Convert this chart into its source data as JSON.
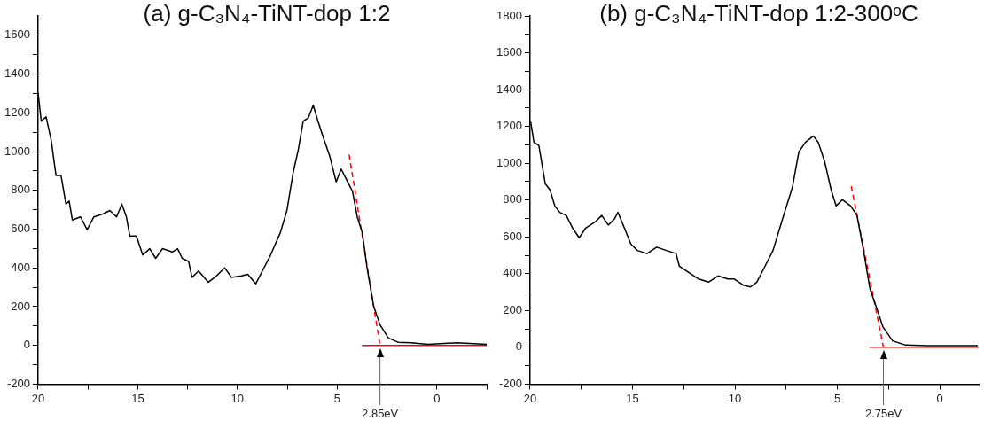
{
  "chart_data": [
    {
      "type": "line",
      "title": "(a) g-C₃N₄-TiNT-dop 1:2",
      "xlim": [
        20,
        -2.5
      ],
      "ylim": [
        -200,
        1700
      ],
      "xticks": [
        20,
        {
          "value": 17.5,
          "label": null
        },
        15,
        {
          "value": 12.5,
          "label": null
        },
        10,
        {
          "value": 7.5,
          "label": null
        },
        5,
        {
          "value": 2.5,
          "label": null
        },
        0,
        {
          "value": -2.5,
          "label": null
        }
      ],
      "yticks": [
        -200,
        {
          "value": -100,
          "label": null
        },
        0,
        {
          "value": 100,
          "label": null
        },
        200,
        {
          "value": 300,
          "label": null
        },
        400,
        {
          "value": 500,
          "label": null
        },
        600,
        {
          "value": 700,
          "label": null
        },
        800,
        {
          "value": 900,
          "label": null
        },
        1000,
        {
          "value": 1100,
          "label": null
        },
        1200,
        {
          "value": 1300,
          "label": null
        },
        1400,
        {
          "value": 1500,
          "label": null
        },
        1600
      ],
      "marker": "none",
      "ref_lines": [
        {
          "axis": "x",
          "value": 2.85,
          "label": "2.85eV",
          "color": "#666666"
        }
      ],
      "series": [
        {
          "type": "line",
          "color": "#000000",
          "line_style": "solid",
          "x": [
            20,
            19.84,
            19.6,
            19.34,
            19.1,
            18.85,
            18.6,
            18.44,
            18.28,
            17.87,
            17.54,
            17.2,
            16.7,
            16.4,
            16.06,
            15.8,
            15.57,
            15.4,
            15.07,
            14.75,
            14.4,
            14.1,
            13.76,
            13.27,
            13,
            12.77,
            12.45,
            12.28,
            11.95,
            11.46,
            11.13,
            10.64,
            10.3,
            9.8,
            9.48,
            9.08,
            8.75,
            8.34,
            7.85,
            7.52,
            7.2,
            6.95,
            6.7,
            6.45,
            6.2,
            5.96,
            5.7,
            5.37,
            5.05,
            4.8,
            4.56,
            4.23,
            3.99,
            3.74,
            3.5,
            3.17,
            2.84,
            2.43,
            1.94,
            1.28,
            0.46,
            -1,
            -2.5
          ],
          "values": [
            1305,
            1157,
            1180,
            1058,
            877,
            877,
            729,
            745,
            647,
            663,
            597,
            663,
            680,
            696,
            663,
            729,
            663,
            565,
            565,
            466,
            499,
            449,
            499,
            482,
            499,
            449,
            433,
            351,
            384,
            326,
            351,
            400,
            351,
            359,
            367,
            318,
            384,
            466,
            581,
            696,
            894,
            1009,
            1157,
            1173,
            1239,
            1157,
            1075,
            976,
            844,
            910,
            861,
            795,
            663,
            581,
            400,
            202,
            104,
            38,
            16,
            13,
            5,
            13,
            5
          ]
        },
        {
          "type": "line",
          "color": "#ff0000",
          "line_style": "dashed",
          "x": [
            4.4,
            2.85
          ],
          "values": [
            985,
            0
          ]
        },
        {
          "type": "line",
          "color": "#ff0000",
          "line_style": "solid",
          "x": [
            3.75,
            -2.5
          ],
          "values": [
            0,
            0
          ]
        }
      ]
    },
    {
      "type": "line",
      "title": "(b) g-C₃N₄-TiNT-dop 1:2-300ᵒC",
      "xlim": [
        20,
        -1.9
      ],
      "ylim": [
        -200,
        1800
      ],
      "xticks": [
        20,
        {
          "value": 17.5,
          "label": null
        },
        15,
        {
          "value": 12.5,
          "label": null
        },
        10,
        {
          "value": 7.5,
          "label": null
        },
        5,
        {
          "value": 2.5,
          "label": null
        },
        0
      ],
      "yticks": [
        -200,
        {
          "value": -100,
          "label": null
        },
        0,
        {
          "value": 100,
          "label": null
        },
        200,
        {
          "value": 300,
          "label": null
        },
        400,
        {
          "value": 500,
          "label": null
        },
        600,
        {
          "value": 700,
          "label": null
        },
        800,
        {
          "value": 900,
          "label": null
        },
        1000,
        {
          "value": 1100,
          "label": null
        },
        1200,
        {
          "value": 1300,
          "label": null
        },
        1400,
        {
          "value": 1500,
          "label": null
        },
        1600,
        {
          "value": 1700,
          "label": null
        },
        1800
      ],
      "marker": "none",
      "ref_lines": [
        {
          "axis": "x",
          "value": 2.75,
          "label": "2.75eV",
          "color": "#666666"
        }
      ],
      "series": [
        {
          "type": "line",
          "color": "#000000",
          "line_style": "solid",
          "x": [
            19.97,
            19.81,
            19.57,
            19.26,
            19.02,
            18.79,
            18.55,
            18.23,
            17.92,
            17.6,
            17.29,
            16.81,
            16.5,
            16.18,
            15.87,
            15.71,
            15.39,
            15.08,
            14.76,
            14.29,
            13.82,
            13.34,
            12.87,
            12.71,
            12.24,
            11.77,
            11.29,
            10.82,
            10.35,
            10.03,
            9.56,
            9.24,
            8.93,
            8.61,
            8.14,
            7.67,
            7.19,
            6.88,
            6.56,
            6.17,
            5.93,
            5.62,
            5.3,
            5.06,
            4.75,
            4.35,
            4.04,
            3.72,
            3.41,
            3.09,
            2.78,
            2.3,
            1.67,
            0.57,
            -0.69,
            -1.86
          ],
          "values": [
            1225,
            1113,
            1096,
            889,
            854,
            768,
            733,
            716,
            647,
            595,
            647,
            682,
            716,
            664,
            699,
            733,
            647,
            561,
            526,
            509,
            544,
            526,
            509,
            440,
            406,
            371,
            354,
            388,
            371,
            371,
            336,
            328,
            354,
            423,
            526,
            699,
            871,
            1061,
            1113,
            1148,
            1113,
            1009,
            854,
            768,
            802,
            768,
            716,
            526,
            319,
            216,
            112,
            35,
            12,
            9,
            9,
            9
          ]
        },
        {
          "type": "line",
          "color": "#ff0000",
          "line_style": "dashed",
          "x": [
            4.32,
            2.75
          ],
          "values": [
            875,
            0
          ]
        },
        {
          "type": "line",
          "color": "#ff0000",
          "line_style": "solid",
          "x": [
            3.44,
            -1.9
          ],
          "values": [
            0,
            0
          ]
        }
      ]
    }
  ]
}
